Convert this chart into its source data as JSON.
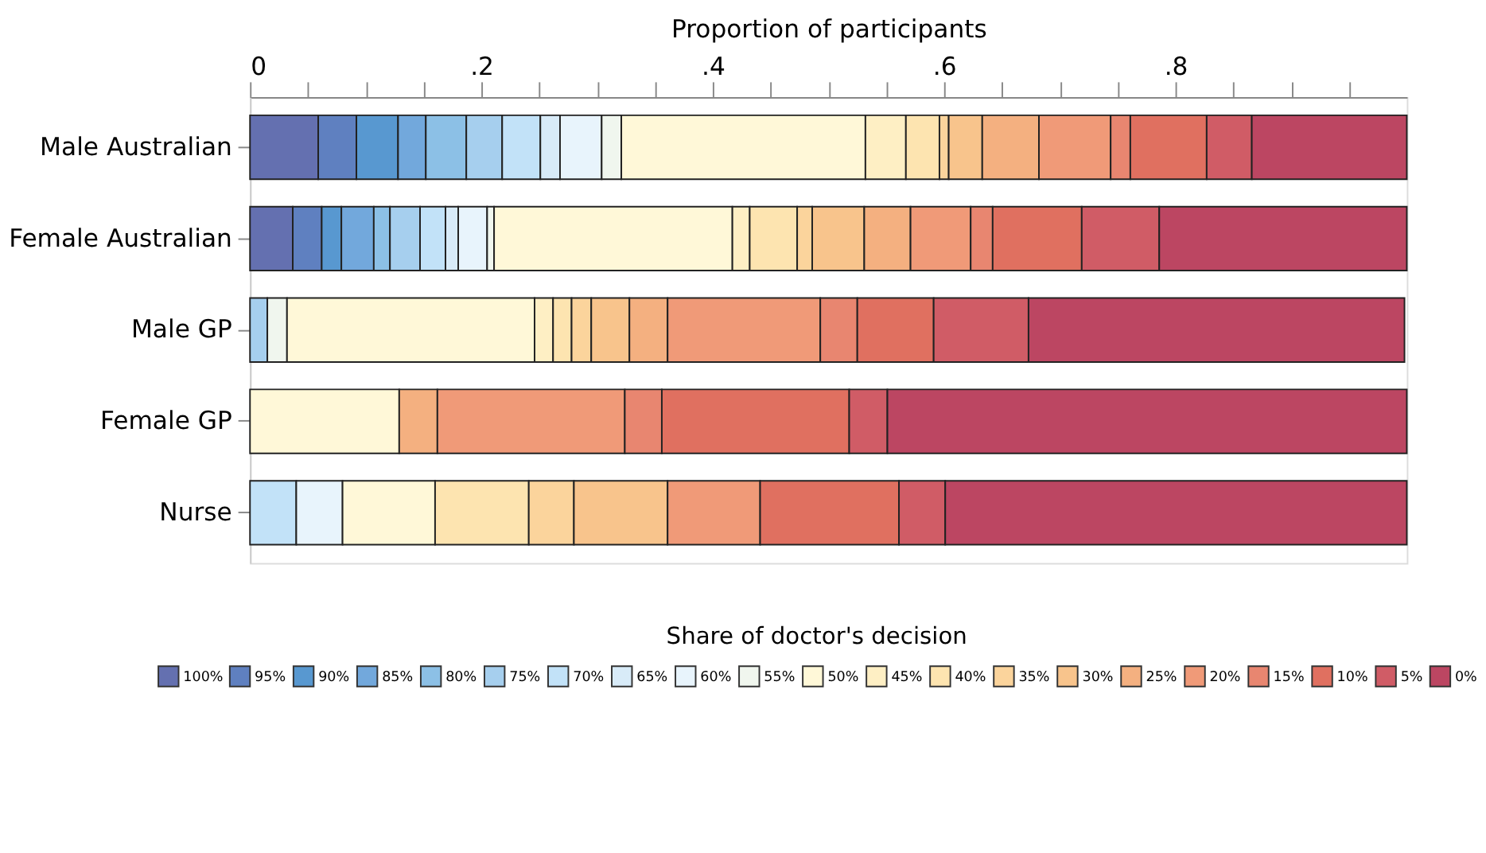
{
  "chart_data": {
    "type": "bar",
    "orientation": "horizontal",
    "stacked": true,
    "xlabel": "Proportion of participants",
    "legend_title": "Share of doctor's decision",
    "legend": "bottom",
    "grid": false,
    "categories": [
      "Male Australian",
      "Female Australian",
      "Male GP",
      "Female GP",
      "Nurse"
    ],
    "xlim": [
      0,
      1
    ],
    "xticks": [
      0,
      {
        "value": 0.05,
        "label": null
      },
      {
        "value": 0.1,
        "label": null
      },
      {
        "value": 0.15,
        "label": null
      },
      {
        "value": 0.2,
        "label": ".2"
      },
      {
        "value": 0.25,
        "label": null
      },
      {
        "value": 0.3,
        "label": null
      },
      {
        "value": 0.35,
        "label": null
      },
      {
        "value": 0.4,
        "label": ".4"
      },
      {
        "value": 0.45,
        "label": null
      },
      {
        "value": 0.5,
        "label": null
      },
      {
        "value": 0.55,
        "label": null
      },
      {
        "value": 0.6,
        "label": ".6"
      },
      {
        "value": 0.65,
        "label": null
      },
      {
        "value": 0.7,
        "label": null
      },
      {
        "value": 0.75,
        "label": null
      },
      {
        "value": 0.8,
        "label": ".8"
      },
      {
        "value": 0.85,
        "label": null
      },
      {
        "value": 0.9,
        "label": null
      },
      {
        "value": 0.95,
        "label": null
      }
    ],
    "series": [
      {
        "name": "100%",
        "color": "#6470b0",
        "values": [
          0.059,
          0.037,
          null,
          null,
          null
        ]
      },
      {
        "name": "95%",
        "color": "#5f80c0",
        "values": [
          0.033,
          0.025,
          null,
          null,
          null
        ]
      },
      {
        "name": "90%",
        "color": "#5898d0",
        "values": [
          0.036,
          0.017,
          null,
          null,
          null
        ]
      },
      {
        "name": "85%",
        "color": "#72a8dc",
        "values": [
          0.024,
          0.028,
          null,
          null,
          null
        ]
      },
      {
        "name": "80%",
        "color": "#8cc0e6",
        "values": [
          0.035,
          0.014,
          null,
          null,
          null
        ]
      },
      {
        "name": "75%",
        "color": "#a6cfee",
        "values": [
          0.031,
          0.026,
          0.015,
          null,
          null
        ]
      },
      {
        "name": "70%",
        "color": "#c2e2f8",
        "values": [
          0.033,
          0.022,
          null,
          null,
          0.04
        ]
      },
      {
        "name": "65%",
        "color": "#d8ebf8",
        "values": [
          0.017,
          0.011,
          null,
          null,
          null
        ]
      },
      {
        "name": "60%",
        "color": "#e8f4fc",
        "values": [
          0.036,
          0.025,
          null,
          null,
          0.04
        ]
      },
      {
        "name": "55%",
        "color": "#f0f6ee",
        "values": [
          0.017,
          0.006,
          0.017,
          null,
          null
        ]
      },
      {
        "name": "50%",
        "color": "#fff8d8",
        "values": [
          0.211,
          0.206,
          0.214,
          0.129,
          0.08
        ]
      },
      {
        "name": "45%",
        "color": "#feefc4",
        "values": [
          0.035,
          0.015,
          0.016,
          null,
          null
        ]
      },
      {
        "name": "40%",
        "color": "#fde4b0",
        "values": [
          0.029,
          0.041,
          0.016,
          null,
          0.081
        ]
      },
      {
        "name": "35%",
        "color": "#fbd49c",
        "values": [
          0.008,
          0.013,
          0.017,
          null,
          0.039
        ]
      },
      {
        "name": "30%",
        "color": "#f8c48c",
        "values": [
          0.029,
          0.045,
          0.033,
          null,
          0.081
        ]
      },
      {
        "name": "25%",
        "color": "#f4b080",
        "values": [
          0.049,
          0.04,
          0.033,
          0.033,
          null
        ]
      },
      {
        "name": "20%",
        "color": "#f09a78",
        "values": [
          0.062,
          0.052,
          0.132,
          0.162,
          0.08
        ]
      },
      {
        "name": "15%",
        "color": "#e88670",
        "values": [
          0.017,
          0.019,
          0.032,
          0.032,
          null
        ]
      },
      {
        "name": "10%",
        "color": "#e07060",
        "values": [
          0.066,
          0.077,
          0.066,
          0.162,
          0.12
        ]
      },
      {
        "name": "5%",
        "color": "#d05c66",
        "values": [
          0.039,
          0.067,
          0.082,
          0.033,
          0.04
        ]
      },
      {
        "name": "0%",
        "color": "#bc4662",
        "values": [
          0.134,
          0.214,
          0.325,
          0.449,
          0.399
        ]
      }
    ]
  }
}
